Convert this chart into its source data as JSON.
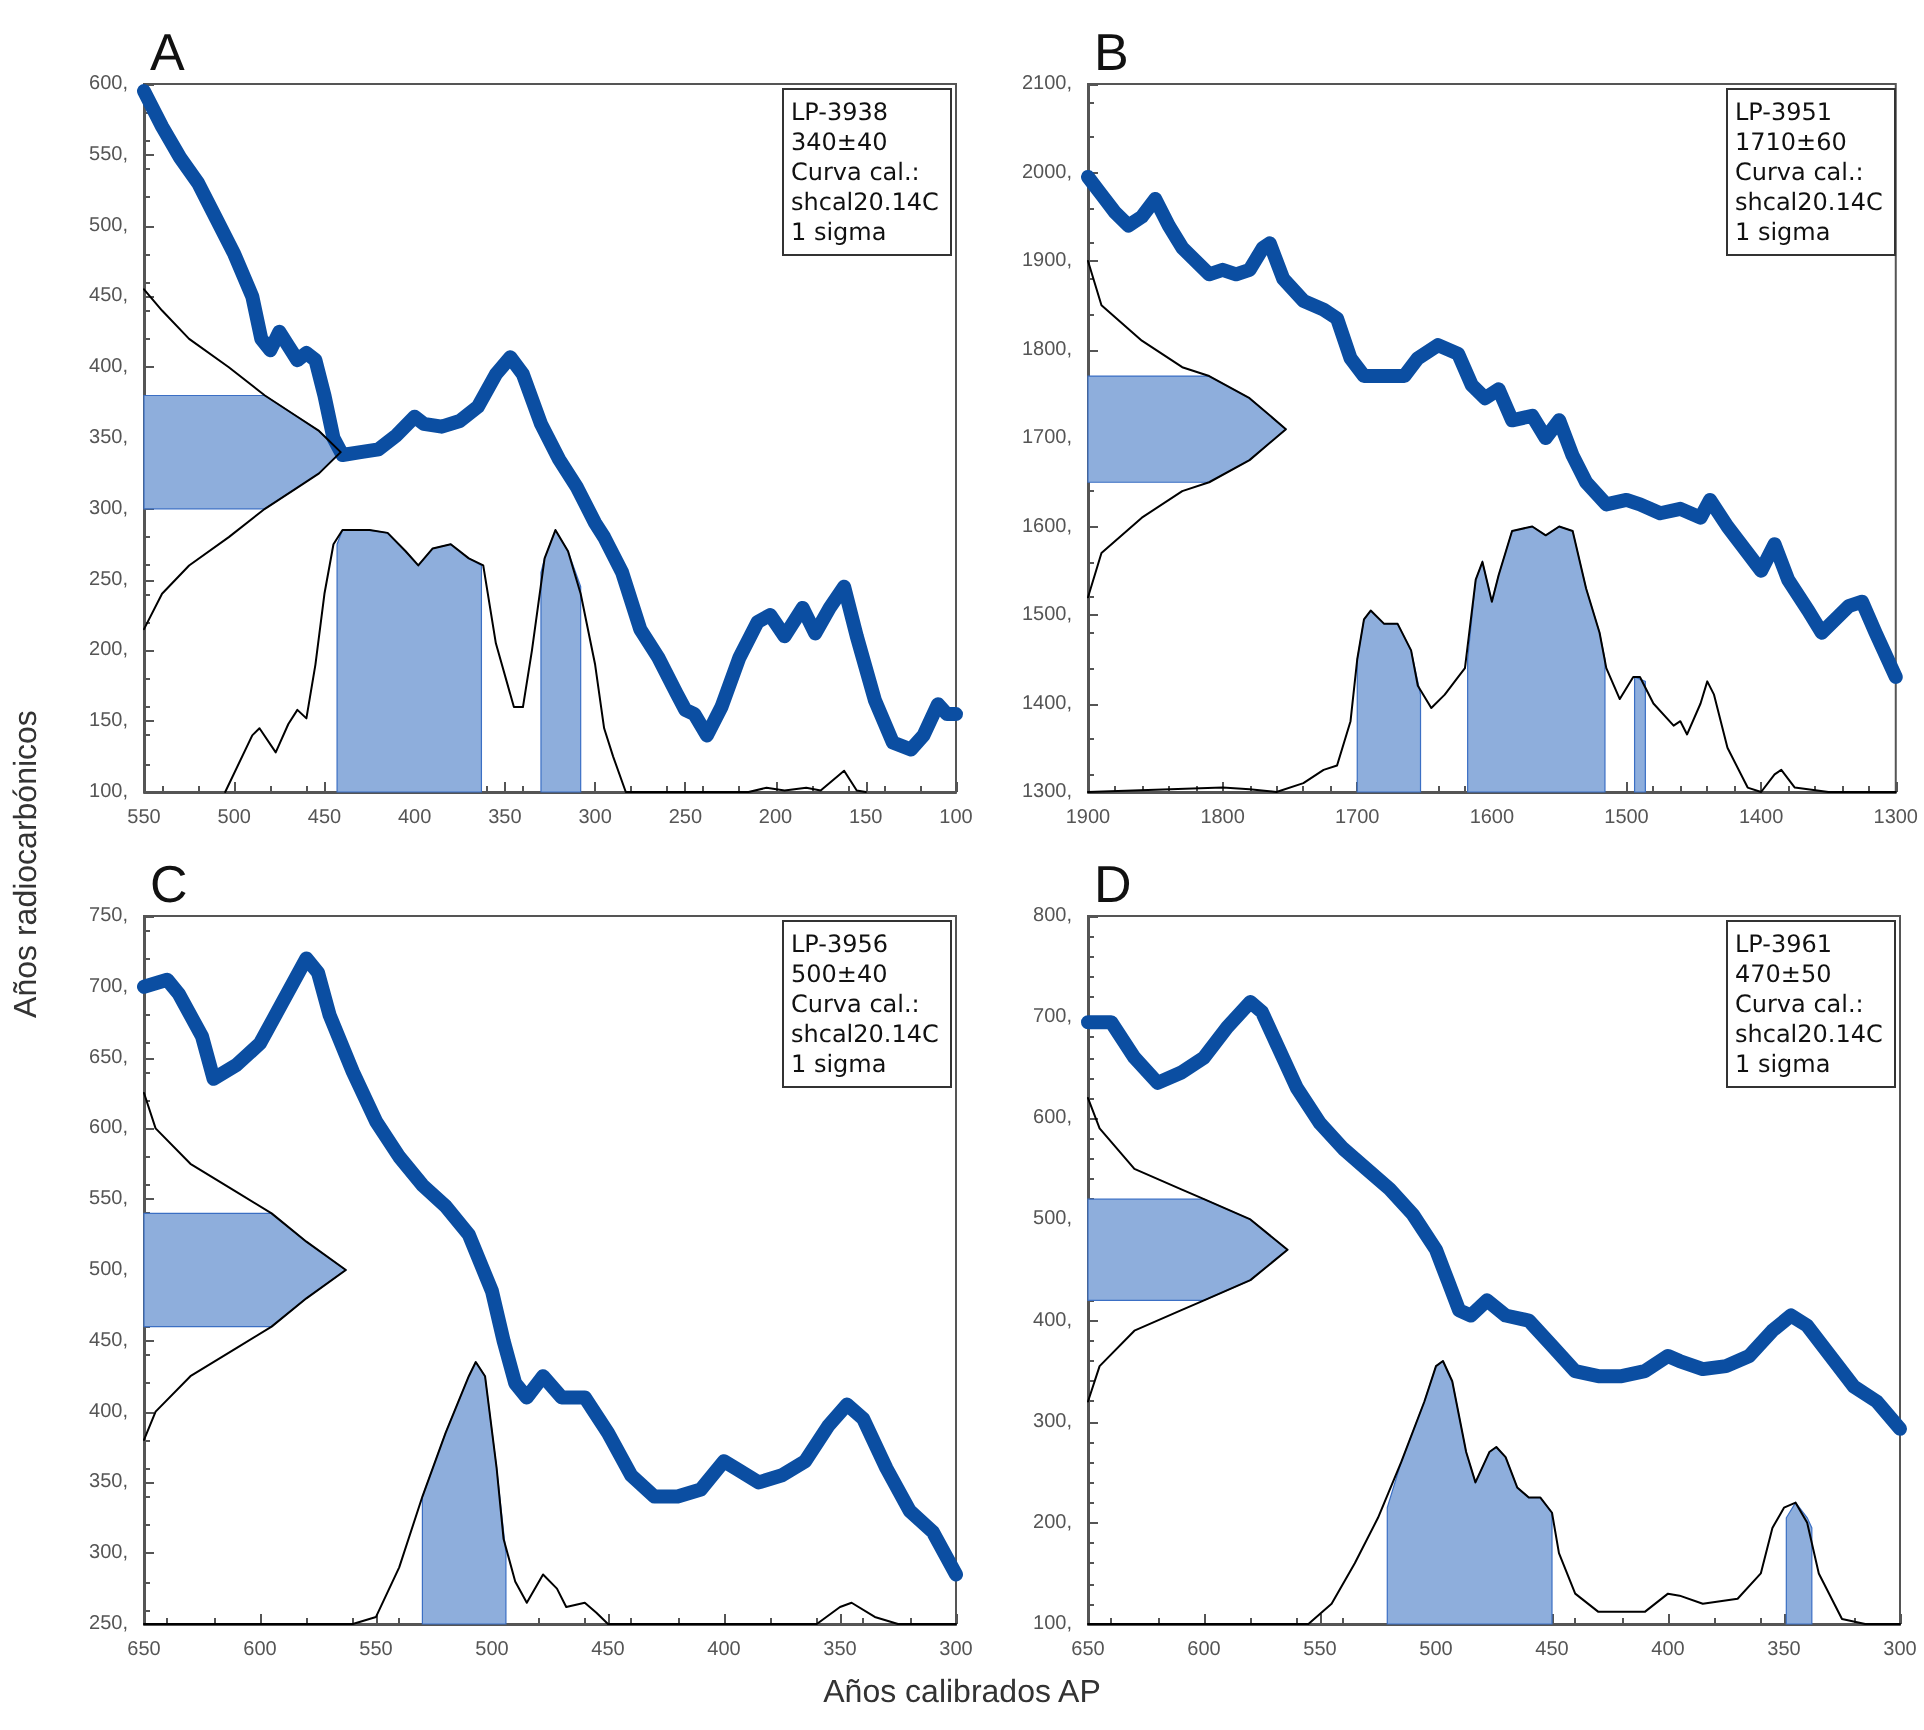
{
  "chart_data": [
    {
      "type": "line",
      "title": "A",
      "ylabel": "Años radiocarbónicos",
      "annotations": [
        "LP-3938",
        "340±40",
        "Curva cal.:",
        "shcal20.14C",
        "1 sigma"
      ],
      "xlim": [
        550,
        100
      ],
      "xticks": [
        550,
        500,
        450,
        400,
        350,
        300,
        250,
        200,
        150,
        100
      ],
      "ylim": [
        100,
        600
      ],
      "yticks": [
        {
          "value": 100,
          "label": "100,"
        },
        {
          "value": 150,
          "label": "150,"
        },
        {
          "value": 200,
          "label": "200,"
        },
        {
          "value": 250,
          "label": "250,"
        },
        {
          "value": 300,
          "label": "300,"
        },
        {
          "value": 350,
          "label": "350,"
        },
        {
          "value": 400,
          "label": "400,"
        },
        {
          "value": 450,
          "label": "450,"
        },
        {
          "value": 500,
          "label": "500,"
        },
        {
          "value": 550,
          "label": "550,"
        },
        {
          "value": 600,
          "label": "600,"
        }
      ],
      "series": [
        {
          "color": "#0b4ea2",
          "x": [
            550,
            540,
            530,
            520,
            510,
            500,
            490,
            485,
            480,
            475,
            470,
            465,
            460,
            455,
            450,
            445,
            440,
            430,
            420,
            410,
            400,
            395,
            385,
            375,
            365,
            355,
            347,
            340,
            330,
            320,
            310,
            300,
            295,
            285,
            275,
            265,
            255,
            250,
            245,
            238,
            230,
            220,
            210,
            203,
            195,
            185,
            178,
            170,
            162,
            155,
            145,
            135,
            125,
            118,
            110,
            105,
            100
          ],
          "values": [
            595,
            570,
            548,
            530,
            505,
            480,
            450,
            420,
            412,
            425,
            415,
            405,
            410,
            405,
            380,
            350,
            338,
            340,
            342,
            352,
            365,
            360,
            358,
            362,
            372,
            395,
            407,
            395,
            360,
            335,
            315,
            290,
            280,
            255,
            215,
            195,
            170,
            158,
            155,
            140,
            160,
            195,
            220,
            225,
            210,
            230,
            212,
            230,
            245,
            210,
            165,
            135,
            130,
            140,
            162,
            155,
            155
          ]
        },
        {
          "type": "area",
          "color": "#8eaedc",
          "x": [
            443,
            443,
            440,
            425,
            415,
            405,
            398,
            390,
            380,
            370,
            363,
            363
          ],
          "values": [
            100,
            275,
            285,
            285,
            283,
            270,
            260,
            272,
            275,
            265,
            260,
            100
          ]
        },
        {
          "type": "area",
          "color": "#8eaedc",
          "x": [
            330,
            330,
            328,
            322,
            315,
            308,
            308
          ],
          "values": [
            100,
            255,
            265,
            285,
            270,
            245,
            100
          ]
        },
        {
          "type": "area",
          "color": "#8eaedc",
          "x": [
            550,
            483,
            465,
            453,
            441,
            453,
            465,
            483,
            550
          ],
          "values": [
            380,
            380,
            365,
            355,
            340,
            325,
            315,
            300,
            300
          ]
        },
        {
          "color": "#000000",
          "x": [
            505,
            490,
            486,
            477,
            470,
            465,
            460,
            455,
            450,
            445,
            440,
            425,
            415,
            405,
            398,
            390,
            380,
            370,
            362,
            355,
            345,
            340,
            335,
            328,
            322,
            315,
            308,
            300,
            295,
            290,
            283,
            215,
            205,
            195,
            183,
            175,
            162,
            155,
            150
          ],
          "values": [
            100,
            140,
            145,
            128,
            148,
            158,
            152,
            190,
            240,
            275,
            285,
            285,
            283,
            270,
            260,
            272,
            275,
            265,
            260,
            205,
            160,
            160,
            200,
            265,
            285,
            270,
            240,
            190,
            145,
            125,
            100,
            100,
            103,
            101,
            103,
            101,
            115,
            101,
            100
          ]
        },
        {
          "color": "#000000",
          "x": [
            550,
            540,
            525,
            503,
            483,
            465,
            453,
            441,
            453,
            465,
            483,
            503,
            525,
            540,
            550
          ],
          "values": [
            455,
            440,
            420,
            400,
            380,
            365,
            355,
            340,
            325,
            315,
            300,
            280,
            260,
            240,
            215
          ]
        }
      ]
    },
    {
      "type": "line",
      "title": "B",
      "annotations": [
        "LP-3951",
        "1710±60",
        "Curva cal.:",
        "shcal20.14C",
        "1 sigma"
      ],
      "xlim": [
        1900,
        1300
      ],
      "xticks": [
        1900,
        1800,
        1700,
        1600,
        1500,
        1400,
        1300
      ],
      "ylim": [
        1300,
        2100
      ],
      "yticks": [
        {
          "value": 1300,
          "label": "1300,"
        },
        {
          "value": 1400,
          "label": "1400,"
        },
        {
          "value": 1500,
          "label": "1500,"
        },
        {
          "value": 1600,
          "label": "1600,"
        },
        {
          "value": 1700,
          "label": "1700,"
        },
        {
          "value": 1800,
          "label": "1800,"
        },
        {
          "value": 1900,
          "label": "1900,"
        },
        {
          "value": 2000,
          "label": "2000,"
        },
        {
          "value": 2100,
          "label": "2100,"
        }
      ],
      "series": [
        {
          "color": "#0b4ea2",
          "x": [
            1900,
            1890,
            1880,
            1870,
            1860,
            1850,
            1840,
            1830,
            1820,
            1810,
            1800,
            1790,
            1780,
            1770,
            1765,
            1755,
            1740,
            1725,
            1715,
            1705,
            1695,
            1680,
            1665,
            1655,
            1640,
            1625,
            1615,
            1605,
            1595,
            1585,
            1570,
            1560,
            1550,
            1540,
            1530,
            1515,
            1500,
            1490,
            1475,
            1460,
            1445,
            1438,
            1425,
            1410,
            1400,
            1390,
            1380,
            1365,
            1355,
            1345,
            1335,
            1325,
            1315,
            1300
          ],
          "values": [
            1995,
            1975,
            1955,
            1940,
            1950,
            1970,
            1940,
            1915,
            1900,
            1885,
            1890,
            1885,
            1890,
            1915,
            1920,
            1880,
            1855,
            1845,
            1835,
            1790,
            1770,
            1770,
            1770,
            1790,
            1805,
            1795,
            1760,
            1745,
            1755,
            1720,
            1725,
            1700,
            1720,
            1680,
            1650,
            1625,
            1630,
            1625,
            1615,
            1620,
            1610,
            1630,
            1600,
            1570,
            1550,
            1580,
            1540,
            1505,
            1480,
            1495,
            1510,
            1515,
            1480,
            1430
          ]
        },
        {
          "type": "area",
          "color": "#8eaedc",
          "x": [
            1700,
            1700,
            1695,
            1690,
            1680,
            1670,
            1660,
            1653,
            1653
          ],
          "values": [
            1300,
            1450,
            1495,
            1505,
            1490,
            1490,
            1460,
            1410,
            1300
          ]
        },
        {
          "type": "area",
          "color": "#8eaedc",
          "x": [
            1618,
            1618,
            1612,
            1607,
            1600,
            1595,
            1585,
            1570,
            1560,
            1550,
            1540,
            1530,
            1520,
            1516,
            1516
          ],
          "values": [
            1300,
            1450,
            1540,
            1560,
            1515,
            1545,
            1595,
            1600,
            1590,
            1600,
            1595,
            1530,
            1480,
            1450,
            1300
          ]
        },
        {
          "type": "area",
          "color": "#8eaedc",
          "x": [
            1494,
            1494,
            1486,
            1486
          ],
          "values": [
            1300,
            1430,
            1425,
            1300
          ]
        },
        {
          "type": "area",
          "color": "#8eaedc",
          "x": [
            1900,
            1810,
            1780,
            1753,
            1780,
            1810,
            1900
          ],
          "values": [
            1770,
            1770,
            1745,
            1710,
            1675,
            1650,
            1650
          ]
        },
        {
          "color": "#000000",
          "x": [
            1900,
            1800,
            1780,
            1760,
            1740,
            1725,
            1715,
            1705,
            1700,
            1695,
            1690,
            1680,
            1670,
            1660,
            1655,
            1645,
            1635,
            1625,
            1620,
            1612,
            1607,
            1600,
            1595,
            1585,
            1570,
            1560,
            1550,
            1540,
            1530,
            1520,
            1515,
            1505,
            1495,
            1490,
            1480,
            1465,
            1460,
            1455,
            1445,
            1440,
            1435,
            1425,
            1410,
            1400,
            1390,
            1385,
            1375,
            1350,
            1300
          ],
          "values": [
            1300,
            1305,
            1303,
            1300,
            1310,
            1325,
            1330,
            1380,
            1450,
            1495,
            1505,
            1490,
            1490,
            1460,
            1420,
            1395,
            1410,
            1430,
            1440,
            1540,
            1560,
            1515,
            1545,
            1595,
            1600,
            1590,
            1600,
            1595,
            1530,
            1480,
            1440,
            1405,
            1430,
            1430,
            1400,
            1375,
            1380,
            1365,
            1400,
            1425,
            1410,
            1350,
            1305,
            1300,
            1320,
            1325,
            1305,
            1300,
            1300
          ]
        },
        {
          "color": "#000000",
          "x": [
            1900,
            1890,
            1860,
            1830,
            1810,
            1780,
            1753,
            1780,
            1810,
            1830,
            1860,
            1890,
            1900
          ],
          "values": [
            1900,
            1850,
            1810,
            1780,
            1770,
            1745,
            1710,
            1675,
            1650,
            1640,
            1610,
            1570,
            1520
          ]
        }
      ]
    },
    {
      "type": "line",
      "title": "C",
      "xlabel": "Años calibrados AP",
      "annotations": [
        "LP-3956",
        "500±40",
        "Curva cal.:",
        "shcal20.14C",
        "1 sigma"
      ],
      "xlim": [
        650,
        300
      ],
      "xticks": [
        650,
        600,
        550,
        500,
        450,
        400,
        350,
        300
      ],
      "ylim": [
        250,
        750
      ],
      "yticks": [
        {
          "value": 250,
          "label": "250,"
        },
        {
          "value": 300,
          "label": "300,"
        },
        {
          "value": 350,
          "label": "350,"
        },
        {
          "value": 400,
          "label": "400,"
        },
        {
          "value": 450,
          "label": "450,"
        },
        {
          "value": 500,
          "label": "500,"
        },
        {
          "value": 550,
          "label": "550,"
        },
        {
          "value": 600,
          "label": "600,"
        },
        {
          "value": 650,
          "label": "650,"
        },
        {
          "value": 700,
          "label": "700,"
        },
        {
          "value": 750,
          "label": "750,"
        }
      ],
      "series": [
        {
          "color": "#0b4ea2",
          "x": [
            650,
            640,
            635,
            625,
            620,
            610,
            600,
            590,
            580,
            575,
            570,
            560,
            550,
            540,
            530,
            520,
            510,
            500,
            495,
            490,
            485,
            478,
            470,
            460,
            450,
            440,
            430,
            420,
            410,
            400,
            395,
            385,
            375,
            365,
            355,
            347,
            340,
            330,
            320,
            310,
            300
          ],
          "values": [
            700,
            705,
            695,
            665,
            635,
            645,
            660,
            690,
            720,
            710,
            680,
            640,
            605,
            580,
            560,
            545,
            525,
            485,
            450,
            420,
            410,
            425,
            410,
            410,
            385,
            355,
            340,
            340,
            345,
            365,
            360,
            350,
            355,
            365,
            390,
            405,
            395,
            360,
            330,
            315,
            285
          ]
        },
        {
          "type": "area",
          "color": "#8eaedc",
          "x": [
            530,
            530,
            520,
            510,
            507,
            503,
            498,
            494,
            494
          ],
          "values": [
            250,
            340,
            385,
            425,
            435,
            425,
            360,
            300,
            250
          ]
        },
        {
          "type": "area",
          "color": "#8eaedc",
          "x": [
            650,
            595,
            580,
            563,
            580,
            595,
            650
          ],
          "values": [
            540,
            540,
            520,
            500,
            480,
            460,
            460
          ]
        },
        {
          "color": "#000000",
          "x": [
            650,
            560,
            550,
            540,
            530,
            520,
            510,
            507,
            503,
            498,
            495,
            490,
            485,
            478,
            472,
            468,
            460,
            455,
            450,
            360,
            350,
            345,
            335,
            325,
            300
          ],
          "values": [
            250,
            250,
            255,
            290,
            340,
            385,
            425,
            435,
            425,
            360,
            310,
            280,
            265,
            285,
            275,
            262,
            265,
            258,
            250,
            250,
            262,
            265,
            255,
            250,
            250
          ]
        },
        {
          "color": "#000000",
          "x": [
            650,
            645,
            630,
            610,
            595,
            580,
            563,
            580,
            595,
            610,
            630,
            645,
            650
          ],
          "values": [
            625,
            600,
            575,
            555,
            540,
            520,
            500,
            480,
            460,
            445,
            425,
            400,
            380
          ]
        }
      ]
    },
    {
      "type": "line",
      "title": "D",
      "annotations": [
        "LP-3961",
        "470±50",
        "Curva cal.:",
        "shcal20.14C",
        "1 sigma"
      ],
      "xlim": [
        650,
        300
      ],
      "xticks": [
        650,
        600,
        550,
        500,
        450,
        400,
        350,
        300
      ],
      "ylim": [
        100,
        800
      ],
      "yticks": [
        {
          "value": 100,
          "label": "100,"
        },
        {
          "value": 200,
          "label": "200,"
        },
        {
          "value": 300,
          "label": "300,"
        },
        {
          "value": 400,
          "label": "400,"
        },
        {
          "value": 500,
          "label": "500,"
        },
        {
          "value": 600,
          "label": "600,"
        },
        {
          "value": 700,
          "label": "700,"
        },
        {
          "value": 800,
          "label": "800,"
        }
      ],
      "series": [
        {
          "color": "#0b4ea2",
          "x": [
            650,
            640,
            630,
            620,
            610,
            600,
            590,
            580,
            575,
            570,
            560,
            550,
            540,
            530,
            520,
            510,
            500,
            495,
            490,
            485,
            478,
            470,
            460,
            450,
            440,
            430,
            420,
            410,
            400,
            395,
            385,
            375,
            365,
            355,
            347,
            340,
            330,
            320,
            310,
            300
          ],
          "values": [
            695,
            695,
            660,
            635,
            645,
            660,
            690,
            715,
            705,
            680,
            630,
            595,
            570,
            550,
            530,
            505,
            470,
            440,
            410,
            405,
            420,
            405,
            400,
            375,
            350,
            345,
            345,
            350,
            365,
            360,
            352,
            355,
            365,
            390,
            405,
            395,
            365,
            335,
            320,
            293
          ]
        },
        {
          "type": "area",
          "color": "#8eaedc",
          "x": [
            521,
            521,
            515,
            505,
            500,
            497,
            493,
            487,
            483,
            477,
            474,
            470,
            465,
            460,
            455,
            450,
            450
          ],
          "values": [
            100,
            215,
            260,
            320,
            355,
            360,
            340,
            270,
            240,
            270,
            275,
            265,
            235,
            225,
            225,
            210,
            100
          ]
        },
        {
          "type": "area",
          "color": "#8eaedc",
          "x": [
            349,
            349,
            345,
            340,
            338,
            338
          ],
          "values": [
            100,
            205,
            220,
            205,
            195,
            100
          ]
        },
        {
          "type": "area",
          "color": "#8eaedc",
          "x": [
            650,
            600,
            580,
            564,
            580,
            600,
            650
          ],
          "values": [
            520,
            520,
            500,
            470,
            440,
            420,
            420
          ]
        },
        {
          "color": "#000000",
          "x": [
            650,
            555,
            545,
            535,
            525,
            515,
            505,
            500,
            497,
            493,
            487,
            483,
            477,
            474,
            470,
            465,
            460,
            455,
            450,
            447,
            440,
            430,
            410,
            400,
            395,
            385,
            370,
            360,
            355,
            350,
            345,
            340,
            335,
            325,
            315,
            300
          ],
          "values": [
            100,
            100,
            120,
            160,
            205,
            260,
            320,
            355,
            360,
            340,
            270,
            240,
            270,
            275,
            265,
            235,
            225,
            225,
            210,
            170,
            130,
            112,
            112,
            130,
            128,
            120,
            125,
            150,
            195,
            215,
            220,
            200,
            150,
            105,
            100,
            100
          ]
        },
        {
          "color": "#000000",
          "x": [
            650,
            645,
            630,
            610,
            600,
            580,
            564,
            580,
            600,
            610,
            630,
            645,
            650
          ],
          "values": [
            620,
            590,
            550,
            530,
            520,
            500,
            470,
            440,
            420,
            410,
            390,
            355,
            320
          ]
        }
      ]
    }
  ]
}
